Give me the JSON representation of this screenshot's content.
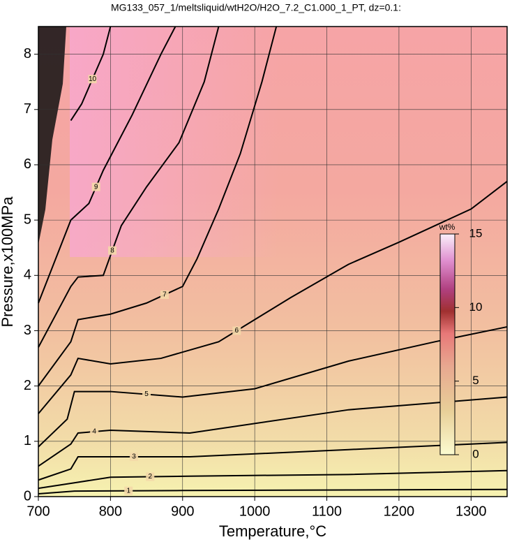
{
  "chart_data": {
    "type": "contour",
    "title": "MG133_057_1/meltsliquid/wtH2O/H2O_7.2_C1.000_1_PT, dz=0.1:",
    "xlabel": "Temperature,°C",
    "ylabel": "Pressure,x100MPa",
    "xlim": [
      700,
      1350
    ],
    "ylim": [
      0,
      8.5
    ],
    "xticks": [
      700,
      800,
      900,
      1000,
      1100,
      1200,
      1300
    ],
    "yticks": [
      0,
      1,
      2,
      3,
      4,
      5,
      6,
      7,
      8
    ],
    "grid": true,
    "colorbar": {
      "label": "wt%",
      "lim": [
        0,
        15
      ],
      "ticks": [
        0,
        5,
        10,
        15
      ]
    },
    "contours": [
      {
        "level": 1,
        "x": [
          700,
          750,
          900,
          1130,
          1350
        ],
        "y": [
          0.05,
          0.1,
          0.11,
          0.12,
          0.13
        ]
      },
      {
        "level": 2,
        "x": [
          700,
          750,
          800,
          910,
          1130,
          1350
        ],
        "y": [
          0.15,
          0.25,
          0.35,
          0.37,
          0.4,
          0.47
        ]
      },
      {
        "level": 3,
        "x": [
          700,
          745,
          755,
          910,
          1130,
          1350
        ],
        "y": [
          0.3,
          0.5,
          0.72,
          0.72,
          0.85,
          0.98
        ]
      },
      {
        "level": 4,
        "x": [
          700,
          745,
          755,
          800,
          910,
          1130,
          1350
        ],
        "y": [
          0.55,
          0.95,
          1.15,
          1.2,
          1.15,
          1.57,
          1.8
        ]
      },
      {
        "level": 5,
        "x": [
          700,
          740,
          750,
          800,
          900,
          1000,
          1130,
          1250,
          1350
        ],
        "y": [
          0.9,
          1.4,
          1.9,
          1.9,
          1.8,
          1.95,
          2.45,
          2.8,
          3.07
        ]
      },
      {
        "level": 6,
        "x": [
          700,
          745,
          755,
          800,
          870,
          950,
          1000,
          1050,
          1130,
          1200,
          1300,
          1350
        ],
        "y": [
          1.5,
          2.2,
          2.5,
          2.4,
          2.5,
          2.8,
          3.2,
          3.6,
          4.2,
          4.6,
          5.2,
          5.7
        ]
      },
      {
        "level": 7,
        "x": [
          700,
          745,
          755,
          800,
          850,
          900,
          920,
          950,
          980,
          1010,
          1030
        ],
        "y": [
          2.0,
          2.8,
          3.2,
          3.3,
          3.5,
          3.8,
          4.3,
          5.2,
          6.2,
          7.5,
          8.5
        ]
      },
      {
        "level": 8,
        "x": [
          700,
          745,
          755,
          790,
          815,
          850,
          895,
          930,
          950
        ],
        "y": [
          2.7,
          3.8,
          3.97,
          4.0,
          4.9,
          5.6,
          6.4,
          7.5,
          8.5
        ]
      },
      {
        "level": 9,
        "x": [
          700,
          745,
          770,
          790,
          830,
          870,
          890
        ],
        "y": [
          3.5,
          5.0,
          5.3,
          5.9,
          6.9,
          8.0,
          8.5
        ]
      },
      {
        "level": 10,
        "x": [
          745,
          760,
          790,
          800
        ],
        "y": [
          6.8,
          7.1,
          8.0,
          8.5
        ]
      }
    ]
  }
}
